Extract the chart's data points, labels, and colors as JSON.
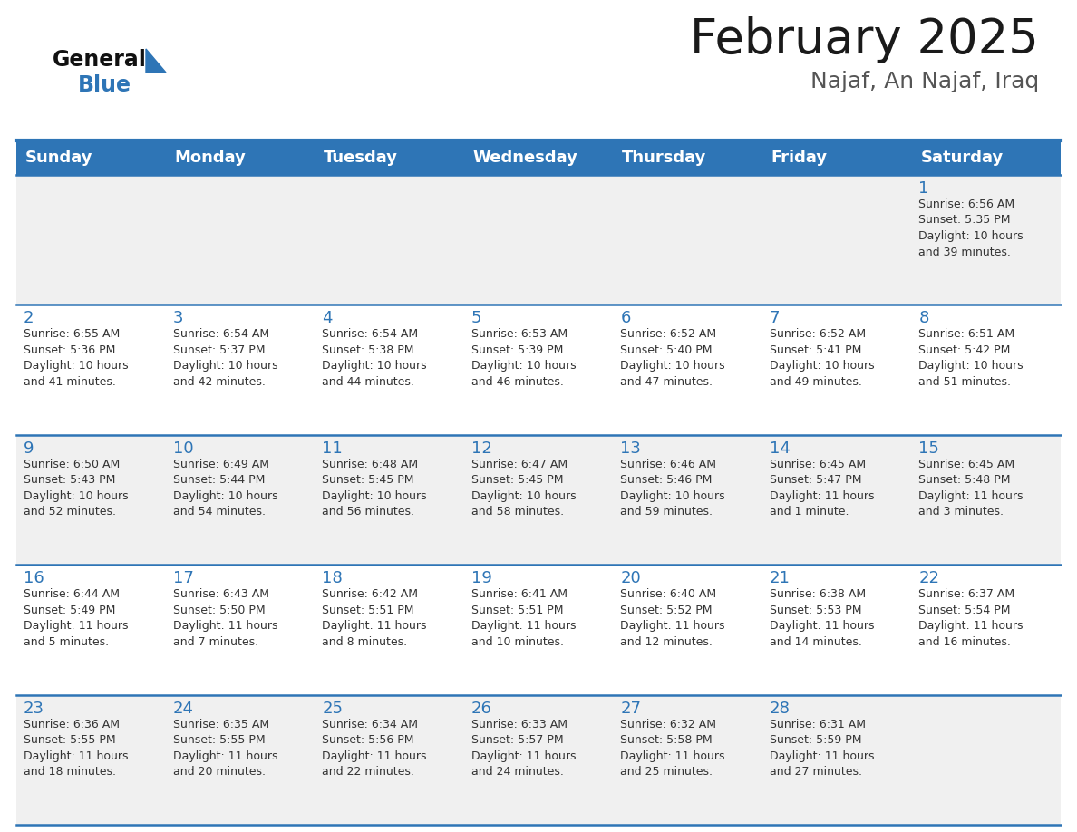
{
  "title": "February 2025",
  "subtitle": "Najaf, An Najaf, Iraq",
  "header_bg": "#2E75B6",
  "header_text_color": "#FFFFFF",
  "day_names": [
    "Sunday",
    "Monday",
    "Tuesday",
    "Wednesday",
    "Thursday",
    "Friday",
    "Saturday"
  ],
  "title_color": "#1a1a1a",
  "subtitle_color": "#555555",
  "cell_bg_odd": "#f0f0f0",
  "cell_bg_even": "#ffffff",
  "day_num_color": "#2E75B6",
  "cell_text_color": "#333333",
  "separator_color": "#2E75B6",
  "logo_color1": "#111111",
  "logo_color2": "#2E75B6",
  "logo_text1": "General",
  "logo_text2": "Blue",
  "weeks": [
    [
      {
        "day": null,
        "info": null
      },
      {
        "day": null,
        "info": null
      },
      {
        "day": null,
        "info": null
      },
      {
        "day": null,
        "info": null
      },
      {
        "day": null,
        "info": null
      },
      {
        "day": null,
        "info": null
      },
      {
        "day": 1,
        "info": "Sunrise: 6:56 AM\nSunset: 5:35 PM\nDaylight: 10 hours\nand 39 minutes."
      }
    ],
    [
      {
        "day": 2,
        "info": "Sunrise: 6:55 AM\nSunset: 5:36 PM\nDaylight: 10 hours\nand 41 minutes."
      },
      {
        "day": 3,
        "info": "Sunrise: 6:54 AM\nSunset: 5:37 PM\nDaylight: 10 hours\nand 42 minutes."
      },
      {
        "day": 4,
        "info": "Sunrise: 6:54 AM\nSunset: 5:38 PM\nDaylight: 10 hours\nand 44 minutes."
      },
      {
        "day": 5,
        "info": "Sunrise: 6:53 AM\nSunset: 5:39 PM\nDaylight: 10 hours\nand 46 minutes."
      },
      {
        "day": 6,
        "info": "Sunrise: 6:52 AM\nSunset: 5:40 PM\nDaylight: 10 hours\nand 47 minutes."
      },
      {
        "day": 7,
        "info": "Sunrise: 6:52 AM\nSunset: 5:41 PM\nDaylight: 10 hours\nand 49 minutes."
      },
      {
        "day": 8,
        "info": "Sunrise: 6:51 AM\nSunset: 5:42 PM\nDaylight: 10 hours\nand 51 minutes."
      }
    ],
    [
      {
        "day": 9,
        "info": "Sunrise: 6:50 AM\nSunset: 5:43 PM\nDaylight: 10 hours\nand 52 minutes."
      },
      {
        "day": 10,
        "info": "Sunrise: 6:49 AM\nSunset: 5:44 PM\nDaylight: 10 hours\nand 54 minutes."
      },
      {
        "day": 11,
        "info": "Sunrise: 6:48 AM\nSunset: 5:45 PM\nDaylight: 10 hours\nand 56 minutes."
      },
      {
        "day": 12,
        "info": "Sunrise: 6:47 AM\nSunset: 5:45 PM\nDaylight: 10 hours\nand 58 minutes."
      },
      {
        "day": 13,
        "info": "Sunrise: 6:46 AM\nSunset: 5:46 PM\nDaylight: 10 hours\nand 59 minutes."
      },
      {
        "day": 14,
        "info": "Sunrise: 6:45 AM\nSunset: 5:47 PM\nDaylight: 11 hours\nand 1 minute."
      },
      {
        "day": 15,
        "info": "Sunrise: 6:45 AM\nSunset: 5:48 PM\nDaylight: 11 hours\nand 3 minutes."
      }
    ],
    [
      {
        "day": 16,
        "info": "Sunrise: 6:44 AM\nSunset: 5:49 PM\nDaylight: 11 hours\nand 5 minutes."
      },
      {
        "day": 17,
        "info": "Sunrise: 6:43 AM\nSunset: 5:50 PM\nDaylight: 11 hours\nand 7 minutes."
      },
      {
        "day": 18,
        "info": "Sunrise: 6:42 AM\nSunset: 5:51 PM\nDaylight: 11 hours\nand 8 minutes."
      },
      {
        "day": 19,
        "info": "Sunrise: 6:41 AM\nSunset: 5:51 PM\nDaylight: 11 hours\nand 10 minutes."
      },
      {
        "day": 20,
        "info": "Sunrise: 6:40 AM\nSunset: 5:52 PM\nDaylight: 11 hours\nand 12 minutes."
      },
      {
        "day": 21,
        "info": "Sunrise: 6:38 AM\nSunset: 5:53 PM\nDaylight: 11 hours\nand 14 minutes."
      },
      {
        "day": 22,
        "info": "Sunrise: 6:37 AM\nSunset: 5:54 PM\nDaylight: 11 hours\nand 16 minutes."
      }
    ],
    [
      {
        "day": 23,
        "info": "Sunrise: 6:36 AM\nSunset: 5:55 PM\nDaylight: 11 hours\nand 18 minutes."
      },
      {
        "day": 24,
        "info": "Sunrise: 6:35 AM\nSunset: 5:55 PM\nDaylight: 11 hours\nand 20 minutes."
      },
      {
        "day": 25,
        "info": "Sunrise: 6:34 AM\nSunset: 5:56 PM\nDaylight: 11 hours\nand 22 minutes."
      },
      {
        "day": 26,
        "info": "Sunrise: 6:33 AM\nSunset: 5:57 PM\nDaylight: 11 hours\nand 24 minutes."
      },
      {
        "day": 27,
        "info": "Sunrise: 6:32 AM\nSunset: 5:58 PM\nDaylight: 11 hours\nand 25 minutes."
      },
      {
        "day": 28,
        "info": "Sunrise: 6:31 AM\nSunset: 5:59 PM\nDaylight: 11 hours\nand 27 minutes."
      },
      {
        "day": null,
        "info": null
      }
    ]
  ]
}
